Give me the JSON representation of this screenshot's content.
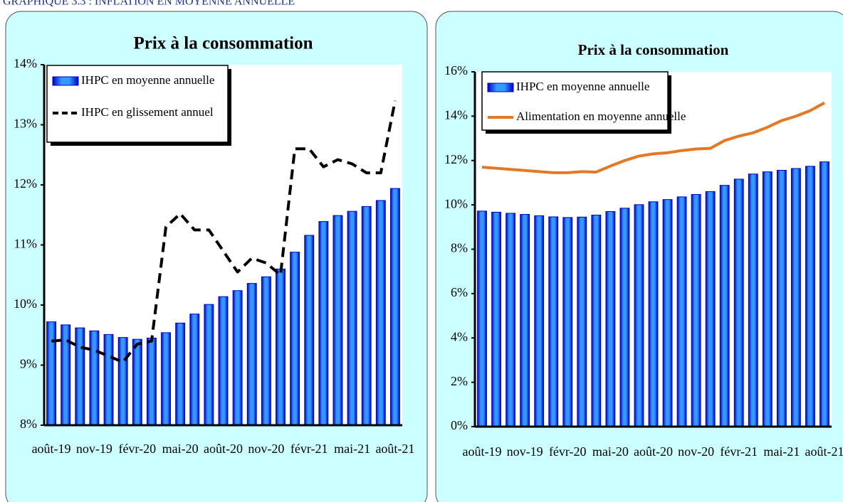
{
  "heading": "GRAPHIQUE 3.3 : INFLATION EN MOYENNE ANNUELLE",
  "chart_data": [
    {
      "type": "bar",
      "title": "Prix à la consommation",
      "categories": [
        "août-19",
        null,
        null,
        "nov-19",
        null,
        null,
        "févr-20",
        null,
        null,
        "mai-20",
        null,
        null,
        "août-20",
        null,
        null,
        "nov-20",
        null,
        null,
        "févr-21",
        null,
        null,
        "mai-21",
        null,
        null,
        "août-21"
      ],
      "series": [
        {
          "name": "IHPC en moyenne annuelle",
          "type": "bar",
          "color": "#0000cc",
          "values": [
            9.72,
            9.67,
            9.62,
            9.57,
            9.51,
            9.46,
            9.43,
            9.45,
            9.54,
            9.7,
            9.85,
            10.01,
            10.14,
            10.24,
            10.36,
            10.47,
            10.6,
            10.88,
            11.16,
            11.39,
            11.49,
            11.56,
            11.64,
            11.74,
            11.94
          ]
        },
        {
          "name": "IHPC en glissement annuel",
          "type": "line",
          "dashed": true,
          "color": "#000000",
          "values": [
            9.4,
            9.42,
            9.3,
            9.25,
            9.15,
            9.05,
            9.35,
            9.4,
            11.3,
            11.52,
            11.25,
            11.25,
            10.9,
            10.55,
            10.78,
            10.7,
            10.5,
            12.6,
            12.6,
            12.3,
            12.42,
            12.35,
            12.2,
            12.2,
            13.4
          ]
        }
      ],
      "ylim": [
        8,
        14
      ],
      "yticks": [
        {
          "value": 8,
          "label": "8%"
        },
        {
          "value": 9,
          "label": "9%"
        },
        {
          "value": 10,
          "label": "10%"
        },
        {
          "value": 11,
          "label": "11%"
        },
        {
          "value": 12,
          "label": "12%"
        },
        {
          "value": 13,
          "label": "13%"
        },
        {
          "value": 14,
          "label": "14%"
        }
      ],
      "legend": "upper left"
    },
    {
      "type": "bar",
      "title": "Prix à la consommation",
      "categories": [
        "août-19",
        null,
        null,
        "nov-19",
        null,
        null,
        "févr-20",
        null,
        null,
        "mai-20",
        null,
        null,
        "août-20",
        null,
        null,
        "nov-20",
        null,
        null,
        "févr-21",
        null,
        null,
        "mai-21",
        null,
        null,
        "août-21"
      ],
      "series": [
        {
          "name": "IHPC en moyenne annuelle",
          "type": "bar",
          "color": "#0000cc",
          "values": [
            9.72,
            9.67,
            9.62,
            9.57,
            9.51,
            9.46,
            9.43,
            9.45,
            9.54,
            9.7,
            9.85,
            10.01,
            10.14,
            10.24,
            10.36,
            10.47,
            10.6,
            10.88,
            11.16,
            11.39,
            11.49,
            11.56,
            11.64,
            11.74,
            11.94
          ]
        },
        {
          "name": "Alimentation en moyenne annuelle",
          "type": "line",
          "dashed": false,
          "color": "#e87722",
          "values": [
            11.7,
            11.65,
            11.6,
            11.55,
            11.5,
            11.45,
            11.45,
            11.5,
            11.48,
            11.75,
            12.0,
            12.2,
            12.3,
            12.35,
            12.45,
            12.52,
            12.55,
            12.9,
            13.1,
            13.25,
            13.5,
            13.8,
            14.0,
            14.25,
            14.6
          ]
        }
      ],
      "ylim": [
        0,
        16
      ],
      "yticks": [
        {
          "value": 0,
          "label": "0%"
        },
        {
          "value": 2,
          "label": "2%"
        },
        {
          "value": 4,
          "label": "4%"
        },
        {
          "value": 6,
          "label": "6%"
        },
        {
          "value": 8,
          "label": "8%"
        },
        {
          "value": 10,
          "label": "10%"
        },
        {
          "value": 12,
          "label": "12%"
        },
        {
          "value": 14,
          "label": "14%"
        },
        {
          "value": 16,
          "label": "16%"
        }
      ],
      "legend": "upper left"
    }
  ]
}
